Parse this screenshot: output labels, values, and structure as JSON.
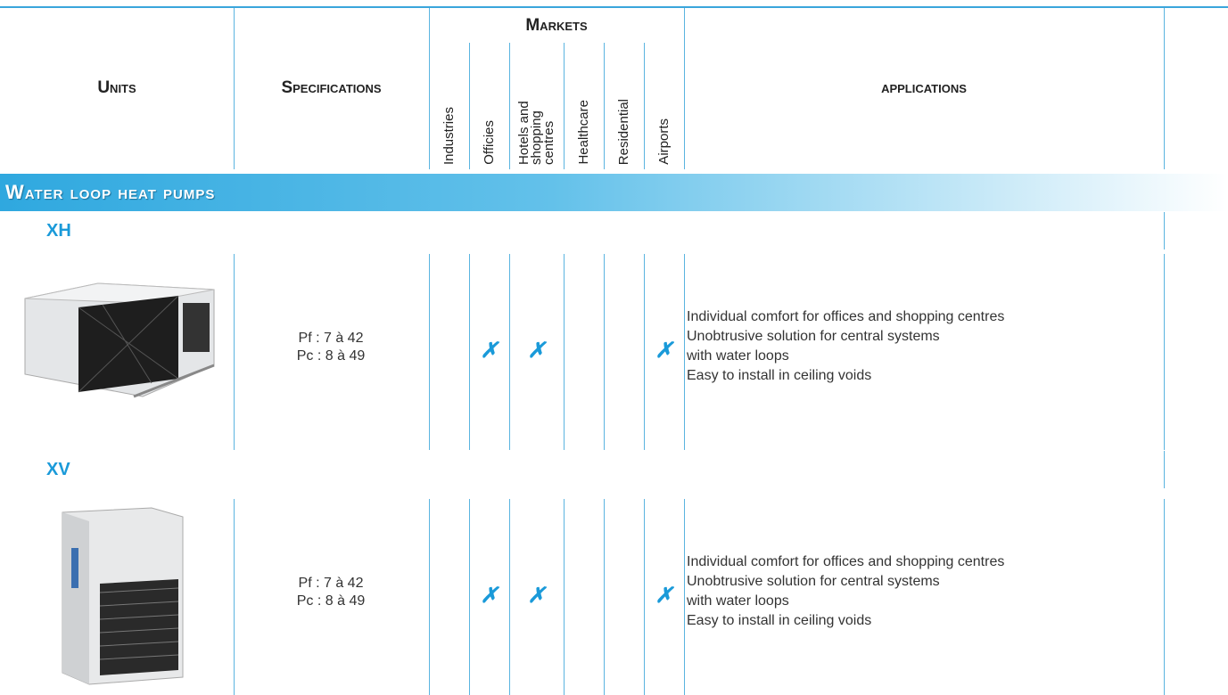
{
  "header": {
    "units": "Units",
    "specifications": "Specifications",
    "markets": "Markets",
    "market_columns": [
      "Industries",
      "Officies",
      "Hotels and shopping centres",
      "Healthcare",
      "Residential",
      "Airports"
    ],
    "applications": "applications"
  },
  "section": "Water loop heat pumps",
  "check_symbol": "✗",
  "products": [
    {
      "name": "XH",
      "specs": [
        "Pf : 7 à 42",
        "Pc : 8 à 49"
      ],
      "markets": [
        false,
        true,
        true,
        false,
        false,
        true
      ],
      "applications": [
        "Individual comfort for offices and shopping centres",
        "Unobtrusive solution for central systems",
        "with water loops",
        "Easy to install in ceiling voids"
      ]
    },
    {
      "name": "XV",
      "specs": [
        "Pf : 7 à 42",
        "Pc : 8 à 49"
      ],
      "markets": [
        false,
        true,
        true,
        false,
        false,
        true
      ],
      "applications": [
        "Individual comfort for offices and shopping centres",
        "Unobtrusive solution for central systems",
        "with water loops",
        "Easy to install in ceiling voids"
      ]
    }
  ]
}
